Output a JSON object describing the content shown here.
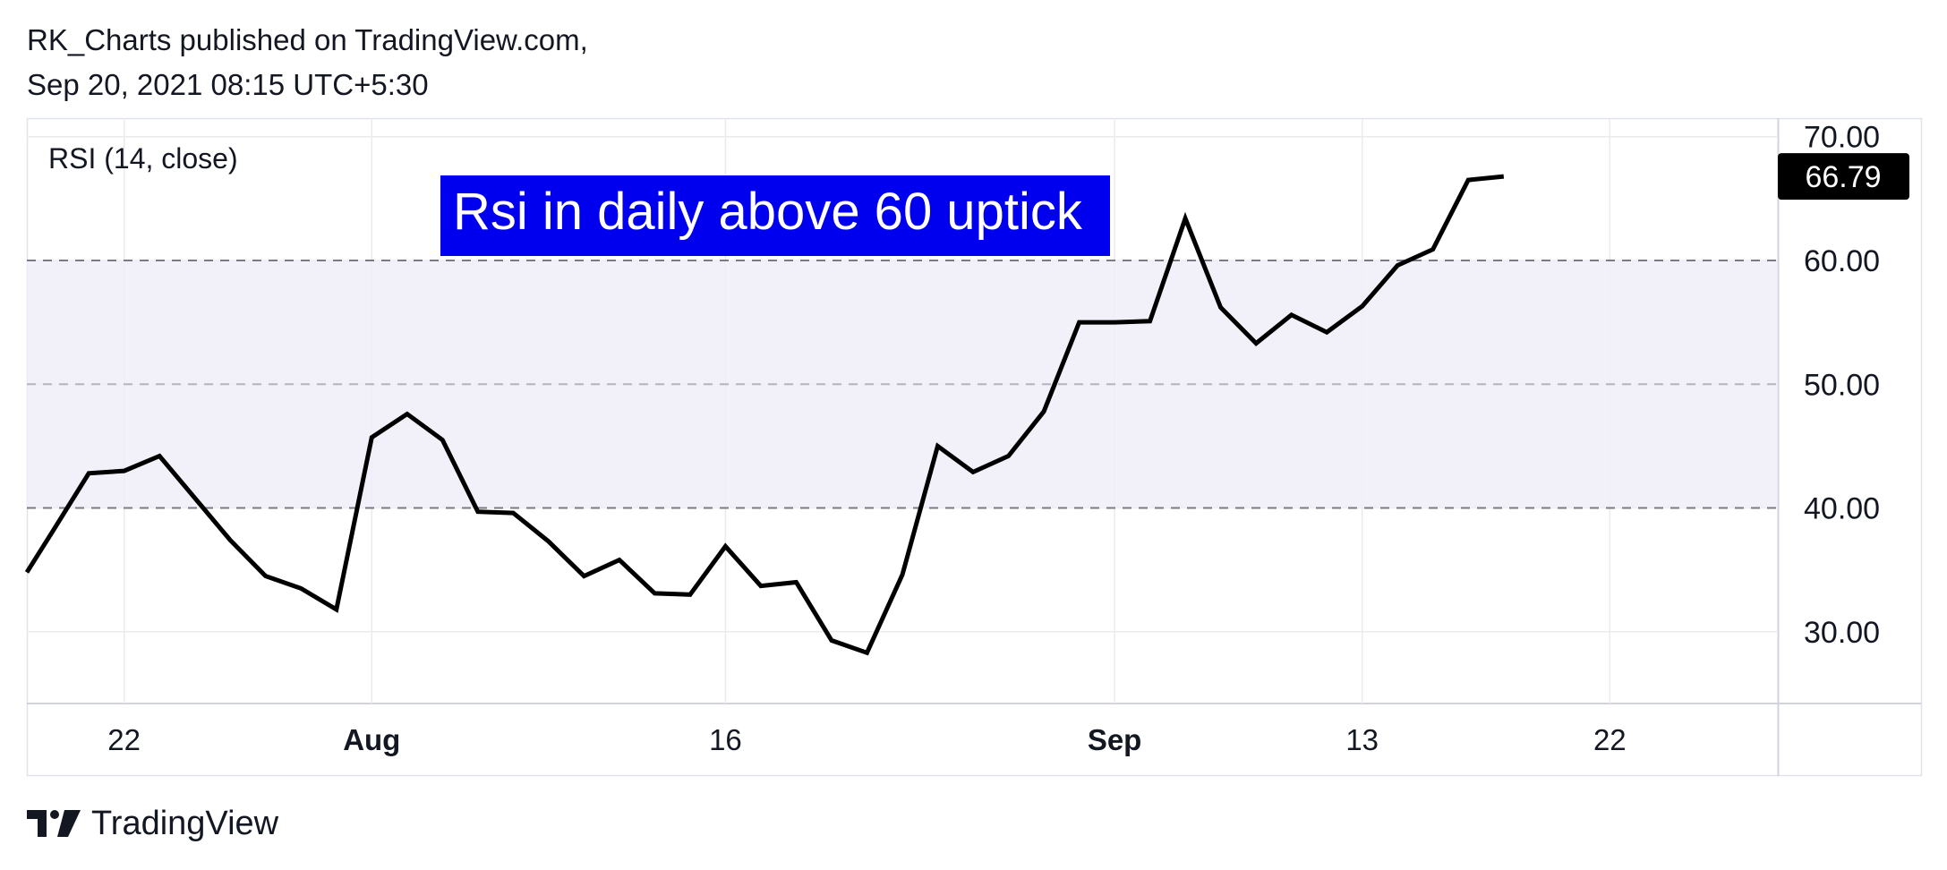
{
  "header": {
    "line1": "RK_Charts published on TradingView.com,",
    "line2": "Sep 20, 2021 08:15 UTC+5:30"
  },
  "footer": {
    "brand": "TradingView",
    "logo_icon": "tradingview-logo-icon"
  },
  "colors": {
    "line": "#000000",
    "band_fill": "#f0edf8",
    "annotation_bg": "#0000ee",
    "annotation_text": "#ffffff",
    "grid": "#ebebeb",
    "dash": "#787b86",
    "last_value_bg": "#000000"
  },
  "chart_data": {
    "type": "line",
    "title": "RSI (14, close)",
    "annotation": "Rsi in daily above 60 uptick",
    "last_value_label": "66.79",
    "ylim": [
      24.2,
      71.5
    ],
    "y_ticks": [
      "70.00",
      "60.00",
      "50.00",
      "40.00",
      "30.00"
    ],
    "y_tick_values": [
      70,
      60,
      50,
      40,
      30
    ],
    "x_ticks": [
      {
        "label": "22",
        "x": 2,
        "bold": false
      },
      {
        "label": "Aug",
        "x": 9,
        "bold": true
      },
      {
        "label": "16",
        "x": 19,
        "bold": false
      },
      {
        "label": "Sep",
        "x": 30,
        "bold": true
      },
      {
        "label": "13",
        "x": 37,
        "bold": false
      },
      {
        "label": "22",
        "x": 44,
        "bold": false
      }
    ],
    "xlim": [
      -0.75,
      48.75
    ],
    "band": {
      "low": 40,
      "high": 60,
      "mid": 50
    },
    "grid": true,
    "series": [
      {
        "x": [
          -0.75,
          0,
          1,
          2,
          3,
          4,
          5,
          6,
          7,
          8,
          9,
          10,
          11,
          12,
          13,
          14,
          15,
          16,
          17,
          18,
          19,
          20,
          21,
          22,
          23,
          24,
          25,
          26,
          27,
          28,
          29,
          30,
          31,
          32,
          33,
          34,
          35,
          36,
          37,
          38,
          39,
          40,
          41
        ],
        "values": [
          34.8,
          38.2,
          42.8,
          43.0,
          44.2,
          40.8,
          37.4,
          34.5,
          33.5,
          31.8,
          45.7,
          47.6,
          45.5,
          39.7,
          39.6,
          37.3,
          34.5,
          35.8,
          33.1,
          33.0,
          36.9,
          33.7,
          34.0,
          29.3,
          28.3,
          34.6,
          45.0,
          42.9,
          44.2,
          47.8,
          55.0,
          55.0,
          55.1,
          63.4,
          56.2,
          53.3,
          55.6,
          54.2,
          56.3,
          59.6,
          60.9,
          66.5,
          66.79
        ]
      }
    ]
  }
}
